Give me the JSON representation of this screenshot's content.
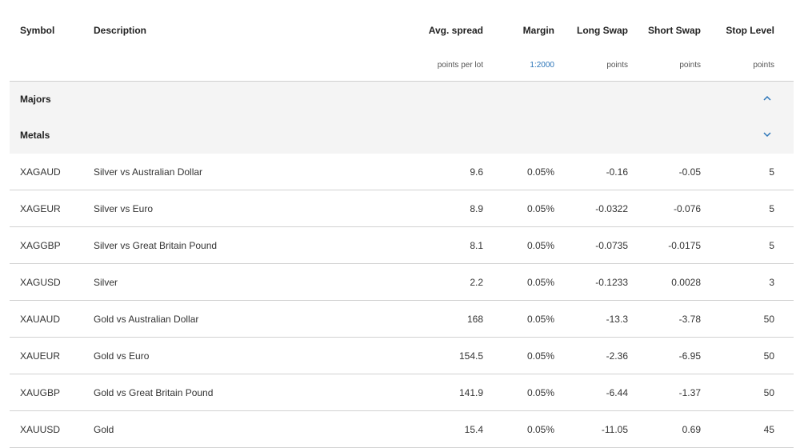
{
  "header": {
    "columns": {
      "symbol": "Symbol",
      "description": "Description",
      "avg_spread": "Avg. spread",
      "margin": "Margin",
      "long_swap": "Long Swap",
      "short_swap": "Short Swap",
      "stop_level": "Stop Level"
    },
    "units": {
      "avg_spread": "points per lot",
      "margin": "1:2000",
      "long_swap": "points",
      "short_swap": "points",
      "stop_level": "points"
    }
  },
  "groups": [
    {
      "label": "Majors",
      "expanded": false,
      "icon": "chevron-up-icon"
    },
    {
      "label": "Metals",
      "expanded": true,
      "icon": "chevron-down-icon"
    }
  ],
  "rows": [
    {
      "symbol": "XAGAUD",
      "description": "Silver vs Australian Dollar",
      "avg_spread": "9.6",
      "margin": "0.05%",
      "long_swap": "-0.16",
      "short_swap": "-0.05",
      "stop_level": "5"
    },
    {
      "symbol": "XAGEUR",
      "description": "Silver vs Euro",
      "avg_spread": "8.9",
      "margin": "0.05%",
      "long_swap": "-0.0322",
      "short_swap": "-0.076",
      "stop_level": "5"
    },
    {
      "symbol": "XAGGBP",
      "description": "Silver vs Great Britain Pound",
      "avg_spread": "8.1",
      "margin": "0.05%",
      "long_swap": "-0.0735",
      "short_swap": "-0.0175",
      "stop_level": "5"
    },
    {
      "symbol": "XAGUSD",
      "description": "Silver",
      "avg_spread": "2.2",
      "margin": "0.05%",
      "long_swap": "-0.1233",
      "short_swap": "0.0028",
      "stop_level": "3"
    },
    {
      "symbol": "XAUAUD",
      "description": "Gold vs Australian Dollar",
      "avg_spread": "168",
      "margin": "0.05%",
      "long_swap": "-13.3",
      "short_swap": "-3.78",
      "stop_level": "50"
    },
    {
      "symbol": "XAUEUR",
      "description": "Gold vs Euro",
      "avg_spread": "154.5",
      "margin": "0.05%",
      "long_swap": "-2.36",
      "short_swap": "-6.95",
      "stop_level": "50"
    },
    {
      "symbol": "XAUGBP",
      "description": "Gold vs Great Britain Pound",
      "avg_spread": "141.9",
      "margin": "0.05%",
      "long_swap": "-6.44",
      "short_swap": "-1.37",
      "stop_level": "50"
    },
    {
      "symbol": "XAUUSD",
      "description": "Gold",
      "avg_spread": "15.4",
      "margin": "0.05%",
      "long_swap": "-11.05",
      "short_swap": "0.69",
      "stop_level": "45"
    }
  ],
  "colors": {
    "accent": "#2a74b8",
    "group_bg": "#f4f4f4"
  }
}
